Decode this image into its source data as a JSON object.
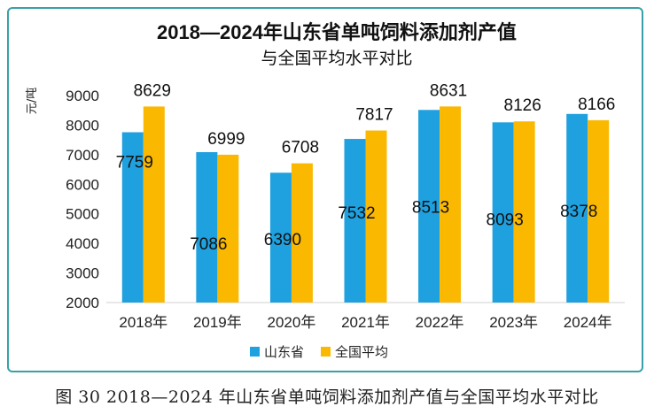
{
  "chart_data": {
    "type": "bar",
    "title": "2018—2024年山东省单吨饲料添加剂产值",
    "subtitle": "与全国平均水平对比",
    "ylabel": "元/吨",
    "xlabel": "",
    "ylim": [
      2000,
      9000
    ],
    "yticks": [
      2000,
      3000,
      4000,
      5000,
      6000,
      7000,
      8000,
      9000
    ],
    "categories": [
      "2018年",
      "2019年",
      "2020年",
      "2021年",
      "2022年",
      "2023年",
      "2024年"
    ],
    "series": [
      {
        "name": "山东省",
        "color": "#1fa0df",
        "values": [
          7759,
          7086,
          6390,
          7532,
          8513,
          8093,
          8378
        ]
      },
      {
        "name": "全国平均",
        "color": "#fbb800",
        "values": [
          8629,
          6999,
          6708,
          7817,
          8631,
          8126,
          8166
        ]
      }
    ],
    "legend": "bottom-center",
    "grid": false
  },
  "caption": "图 30  2018—2024 年山东省单吨饲料添加剂产值与全国平均水平对比"
}
